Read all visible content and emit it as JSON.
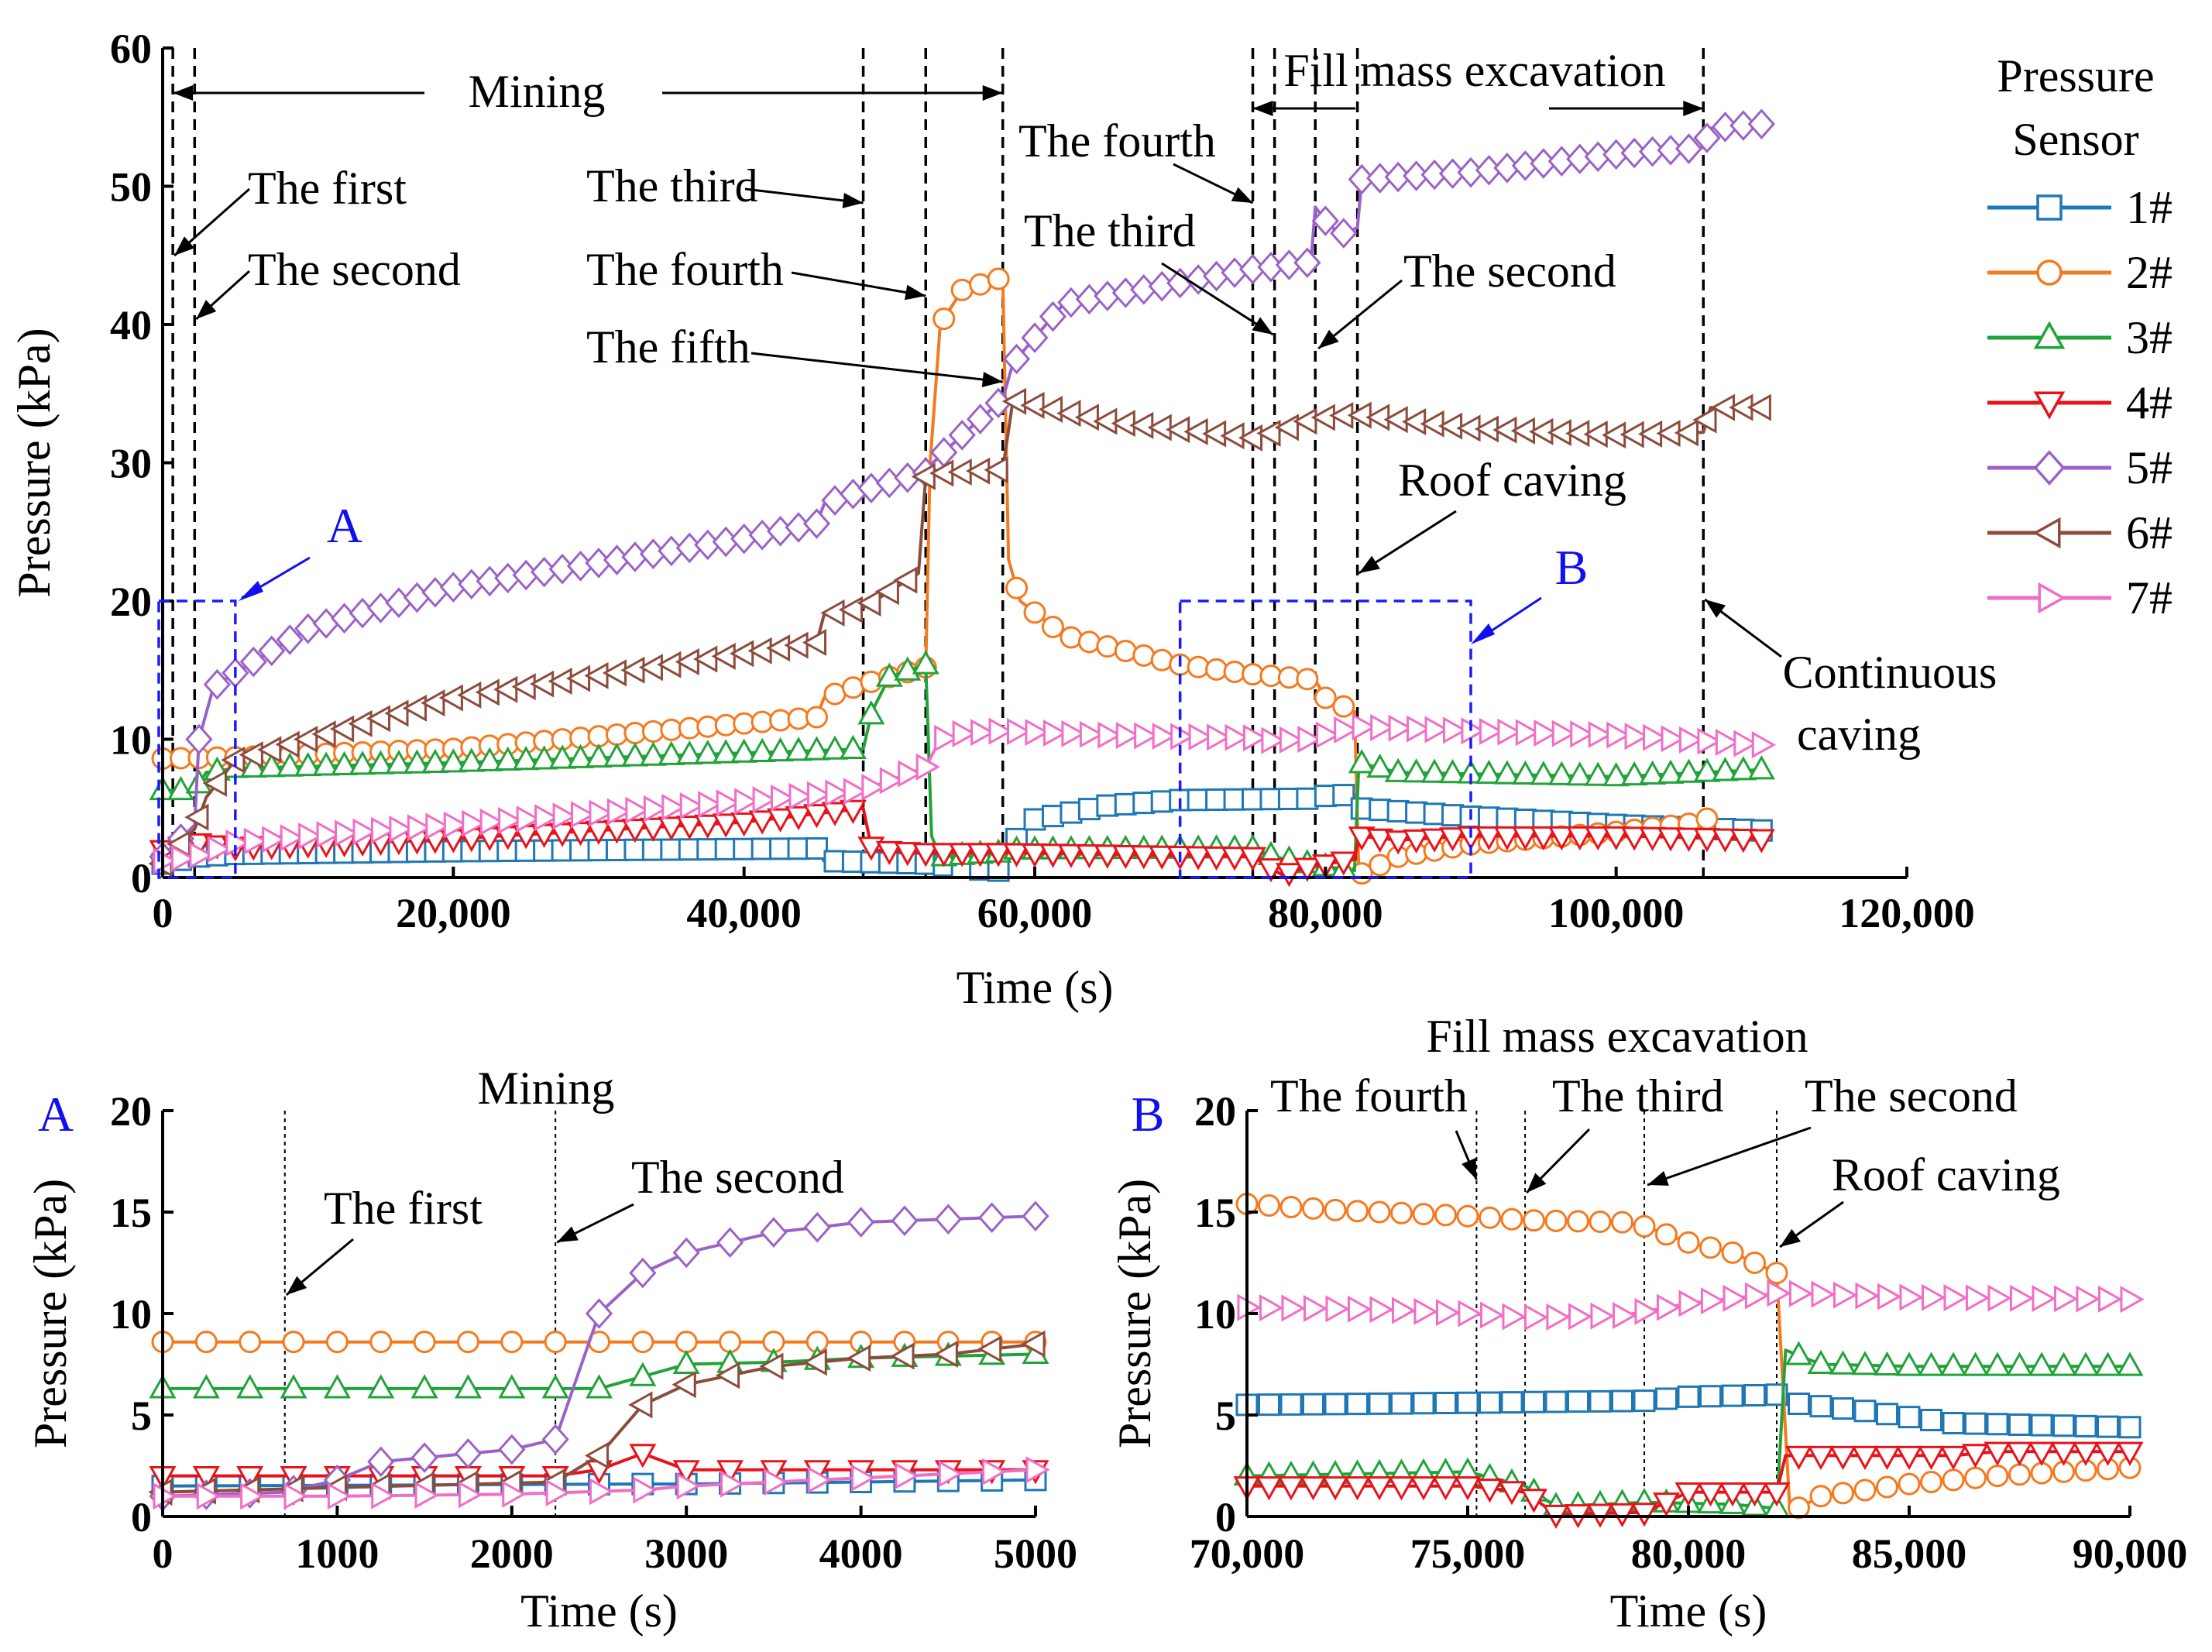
{
  "chart_data": [
    {
      "id": "main",
      "type": "line",
      "title": "",
      "xlabel": "Time (s)",
      "ylabel": "Pressure (kPa)",
      "xlim": [
        0,
        120000
      ],
      "ylim": [
        0,
        60
      ],
      "xticks": [
        0,
        20000,
        40000,
        60000,
        80000,
        100000,
        120000
      ],
      "xtick_labels": [
        "0",
        "20,000",
        "40,000",
        "60,000",
        "80,000",
        "100,000",
        "120,000"
      ],
      "yticks": [
        0,
        10,
        20,
        30,
        40,
        50,
        60
      ],
      "ytick_labels": [
        "0",
        "10",
        "20",
        "30",
        "40",
        "50",
        "60"
      ],
      "vlines": [
        700,
        2200,
        48200,
        52500,
        57800,
        75000,
        76500,
        79300,
        82200,
        106000
      ],
      "annotations": {
        "mining": "Mining",
        "fill_mass": "Fill mass excavation",
        "first": "The first",
        "second_left": "The second",
        "third_left": "The third",
        "fourth_left": "The fourth",
        "fifth": "The fifth",
        "fourth_right": "The fourth",
        "third_right": "The third",
        "second_right": "The second",
        "roof_caving": "Roof caving",
        "continuous_caving_1": "Continuous",
        "continuous_caving_2": "caving",
        "box_a": "A",
        "box_b": "B"
      },
      "boxes": [
        {
          "label": "A",
          "x": [
            0,
            5000
          ],
          "y": [
            0,
            20
          ]
        },
        {
          "label": "B",
          "x": [
            70000,
            90000
          ],
          "y": [
            0,
            20
          ]
        }
      ],
      "series": [
        {
          "name": "1#",
          "x": [
            0,
            2200,
            5000,
            20000,
            45000,
            45500,
            52500,
            57000,
            57800,
            58500,
            60000,
            65000,
            70000,
            79000,
            80000,
            82000,
            82300,
            85000,
            90000,
            100000,
            110000
          ],
          "values": [
            1.0,
            1.5,
            1.7,
            1.9,
            2.1,
            1.2,
            1.0,
            0.5,
            0.5,
            2.5,
            4.2,
            5.2,
            5.6,
            5.7,
            5.9,
            6.0,
            5.0,
            4.8,
            4.4,
            3.8,
            3.4
          ]
        },
        {
          "name": "2#",
          "x": [
            0,
            5000,
            20000,
            45000,
            45500,
            48200,
            52500,
            52800,
            53500,
            55000,
            57800,
            58200,
            59000,
            62000,
            70000,
            75000,
            79300,
            80000,
            82000,
            82300,
            85000,
            90000,
            100000,
            106000,
            106500
          ],
          "values": [
            8.6,
            8.7,
            9.3,
            11.6,
            13.0,
            14.0,
            15.2,
            30.0,
            40.0,
            42.5,
            43.4,
            23.0,
            20.0,
            17.5,
            15.4,
            14.7,
            14.3,
            13.0,
            12.0,
            0.2,
            1.5,
            2.4,
            3.3,
            4.0,
            4.5
          ]
        },
        {
          "name": "3#",
          "x": [
            0,
            2200,
            3000,
            5000,
            20000,
            48200,
            48800,
            50000,
            52500,
            52900,
            53500,
            57800,
            58500,
            75000,
            76500,
            79300,
            82000,
            82300,
            85000,
            90000,
            100000,
            110000
          ],
          "values": [
            6.3,
            6.3,
            7.6,
            7.9,
            8.3,
            9.3,
            12.0,
            14.5,
            15.4,
            3.0,
            1.5,
            1.8,
            2.0,
            2.1,
            1.5,
            0.9,
            0.5,
            8.3,
            7.6,
            7.5,
            7.3,
            7.8
          ]
        },
        {
          "name": "4#",
          "x": [
            0,
            2500,
            5000,
            20000,
            40000,
            48200,
            48800,
            52500,
            57800,
            75000,
            77000,
            79000,
            82000,
            82300,
            85000,
            90000,
            100000,
            110000
          ],
          "values": [
            2.0,
            2.5,
            2.2,
            2.8,
            4.0,
            5.0,
            2.0,
            1.8,
            1.8,
            1.5,
            0.2,
            0.8,
            1.3,
            3.0,
            2.7,
            3.0,
            3.0,
            2.8
          ]
        },
        {
          "name": "5#",
          "x": [
            0,
            2200,
            2500,
            3500,
            5000,
            10000,
            20000,
            40000,
            45000,
            45500,
            48200,
            52500,
            53000,
            55000,
            57800,
            58500,
            62000,
            70000,
            75000,
            79000,
            79300,
            80000,
            81000,
            82200,
            82500,
            90000,
            100000,
            106000,
            106500,
            110000
          ],
          "values": [
            1.5,
            3.8,
            10.0,
            13.8,
            14.8,
            18.0,
            21.0,
            24.5,
            25.6,
            27.0,
            28.0,
            29.3,
            30.0,
            32.0,
            34.6,
            37.2,
            41.5,
            43.0,
            44.0,
            44.5,
            48.5,
            47.5,
            46.5,
            47.0,
            50.5,
            51.0,
            52.3,
            52.8,
            54.2,
            54.5
          ]
        },
        {
          "name": "6#",
          "x": [
            0,
            2200,
            3000,
            5000,
            20000,
            45000,
            45500,
            48200,
            52000,
            52500,
            53000,
            57800,
            58500,
            65000,
            75000,
            76500,
            79300,
            82000,
            90000,
            100000,
            106000,
            106500,
            110000
          ],
          "values": [
            1.0,
            3.5,
            5.8,
            8.5,
            13.0,
            17.0,
            19.0,
            19.5,
            22.0,
            29.0,
            29.2,
            29.5,
            34.5,
            33.0,
            31.8,
            32.2,
            33.2,
            33.5,
            32.5,
            32.0,
            32.2,
            34.0,
            34.0
          ]
        },
        {
          "name": "7#",
          "x": [
            0,
            2200,
            5000,
            10000,
            20000,
            40000,
            48200,
            52500,
            53500,
            55000,
            57800,
            60000,
            65000,
            70000,
            75000,
            76000,
            79000,
            82000,
            85000,
            90000,
            100000,
            110000
          ],
          "values": [
            1.2,
            1.5,
            2.5,
            3.0,
            3.8,
            5.5,
            6.3,
            8.0,
            10.0,
            10.4,
            10.6,
            10.5,
            10.3,
            10.2,
            10.1,
            9.9,
            10.0,
            10.9,
            10.8,
            10.6,
            10.3,
            9.6
          ]
        }
      ]
    },
    {
      "id": "A",
      "type": "line",
      "panel_label": "A",
      "title": "Mining",
      "xlabel": "Time (s)",
      "ylabel": "Pressure (kPa)",
      "xlim": [
        0,
        5000
      ],
      "ylim": [
        0,
        20
      ],
      "xticks": [
        0,
        1000,
        2000,
        3000,
        4000,
        5000
      ],
      "xtick_labels": [
        "0",
        "1000",
        "2000",
        "3000",
        "4000",
        "5000"
      ],
      "yticks": [
        0,
        5,
        10,
        15,
        20
      ],
      "ytick_labels": [
        "0",
        "5",
        "10",
        "15",
        "20"
      ],
      "vlines": [
        700,
        2250
      ],
      "annotations": {
        "first": "The first",
        "second": "The second"
      },
      "series": [
        {
          "name": "1#",
          "x": [
            0,
            2750,
            3000,
            4000,
            5000
          ],
          "values": [
            1.5,
            1.6,
            1.6,
            1.7,
            1.8
          ]
        },
        {
          "name": "2#",
          "x": [
            0,
            2500,
            5000
          ],
          "values": [
            8.6,
            8.6,
            8.6
          ]
        },
        {
          "name": "3#",
          "x": [
            0,
            2250,
            2500,
            2750,
            3000,
            3500,
            4000,
            5000
          ],
          "values": [
            6.3,
            6.3,
            6.3,
            6.9,
            7.5,
            7.6,
            7.8,
            8.0
          ]
        },
        {
          "name": "4#",
          "x": [
            0,
            2250,
            2500,
            2750,
            3000,
            4000,
            5000
          ],
          "values": [
            2.0,
            2.0,
            2.3,
            3.1,
            2.3,
            2.3,
            2.3
          ]
        },
        {
          "name": "5#",
          "x": [
            0,
            700,
            1000,
            1250,
            2000,
            2250,
            2500,
            2750,
            3000,
            3500,
            4000,
            5000
          ],
          "values": [
            1.0,
            1.2,
            1.8,
            2.7,
            3.3,
            3.8,
            10.0,
            12.0,
            13.0,
            14.0,
            14.5,
            14.8
          ]
        },
        {
          "name": "6#",
          "x": [
            0,
            2250,
            2500,
            2750,
            3000,
            3500,
            4000,
            4500,
            5000
          ],
          "values": [
            1.2,
            1.7,
            3.0,
            5.5,
            6.5,
            7.4,
            7.8,
            8.0,
            8.5
          ]
        },
        {
          "name": "7#",
          "x": [
            0,
            1000,
            2000,
            2750,
            3000,
            4000,
            5000
          ],
          "values": [
            1.0,
            1.0,
            1.1,
            1.3,
            1.5,
            1.9,
            2.3
          ]
        }
      ]
    },
    {
      "id": "B",
      "type": "line",
      "panel_label": "B",
      "title": "Fill mass excavation",
      "xlabel": "Time (s)",
      "ylabel": "Pressure (kPa)",
      "xlim": [
        70000,
        90000
      ],
      "ylim": [
        0,
        20
      ],
      "xticks": [
        70000,
        75000,
        80000,
        85000,
        90000
      ],
      "xtick_labels": [
        "70,000",
        "75,000",
        "80,000",
        "85,000",
        "90,000"
      ],
      "yticks": [
        0,
        5,
        10,
        15,
        20
      ],
      "ytick_labels": [
        "0",
        "5",
        "10",
        "15",
        "20"
      ],
      "vlines": [
        75200,
        76300,
        79000,
        82000
      ],
      "annotations": {
        "fourth": "The fourth",
        "third": "The third",
        "second": "The second",
        "roof_caving": "Roof caving"
      },
      "series": [
        {
          "name": "1#",
          "x": [
            70000,
            75000,
            79000,
            80000,
            82000,
            82300,
            84000,
            86000,
            90000
          ],
          "values": [
            5.5,
            5.6,
            5.7,
            5.9,
            6.0,
            5.6,
            5.2,
            4.6,
            4.4
          ]
        },
        {
          "name": "2#",
          "x": [
            70000,
            72000,
            75000,
            76300,
            78500,
            79000,
            80000,
            81000,
            82000,
            82300,
            83000,
            85000,
            87000,
            90000
          ],
          "values": [
            15.4,
            15.1,
            14.8,
            14.6,
            14.5,
            14.3,
            13.5,
            13.0,
            12.0,
            0.2,
            1.0,
            1.6,
            2.0,
            2.4
          ]
        },
        {
          "name": "3#",
          "x": [
            70000,
            75000,
            76300,
            77000,
            79000,
            81000,
            82000,
            82200,
            83000,
            85000,
            90000
          ],
          "values": [
            2.0,
            2.2,
            1.5,
            0.5,
            0.7,
            0.6,
            0.4,
            8.2,
            7.5,
            7.4,
            7.4
          ]
        },
        {
          "name": "4#",
          "x": [
            70000,
            75000,
            76300,
            77000,
            79000,
            80000,
            82000,
            82200,
            84000,
            86000,
            87000,
            90000
          ],
          "values": [
            1.5,
            1.5,
            1.2,
            0.1,
            0.2,
            1.2,
            1.2,
            3.0,
            3.0,
            3.0,
            3.2,
            3.2
          ]
        },
        {
          "name": "7#",
          "x": [
            70000,
            73000,
            75000,
            76300,
            78500,
            80000,
            82000,
            82300,
            85000,
            90000
          ],
          "values": [
            10.3,
            10.2,
            10.0,
            9.8,
            9.9,
            10.5,
            11.0,
            11.0,
            10.8,
            10.7
          ]
        }
      ]
    }
  ],
  "legend": {
    "title_line1": "Pressure",
    "title_line2": "Sensor",
    "entries": [
      {
        "name": "1#",
        "color": "#1f77b4",
        "marker": "square"
      },
      {
        "name": "2#",
        "color": "#f47a1f",
        "marker": "circle"
      },
      {
        "name": "3#",
        "color": "#22a33a",
        "marker": "triangle-up"
      },
      {
        "name": "4#",
        "color": "#e8131a",
        "marker": "triangle-down"
      },
      {
        "name": "5#",
        "color": "#9a62c7",
        "marker": "diamond"
      },
      {
        "name": "6#",
        "color": "#8c4c3c",
        "marker": "triangle-left"
      },
      {
        "name": "7#",
        "color": "#f06ec6",
        "marker": "triangle-right"
      }
    ]
  }
}
